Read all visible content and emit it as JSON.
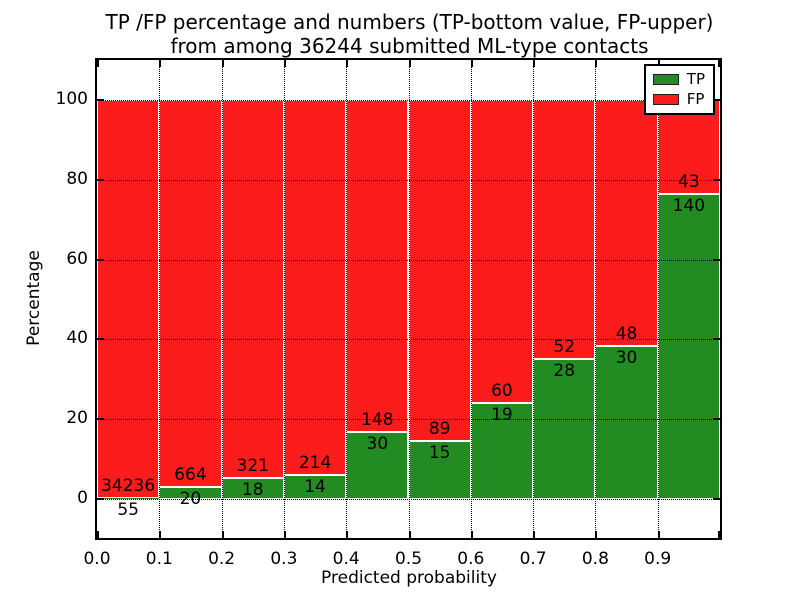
{
  "chart_data": {
    "type": "bar",
    "stacked": true,
    "title_line1": "TP /FP percentage and numbers (TP-bottom value, FP-upper)",
    "title_line2": "from among 36244 submitted ML-type contacts",
    "xlabel": "Predicted probability",
    "ylabel": "Percentage",
    "xlim": [
      0.0,
      1.0
    ],
    "ylim": [
      -10,
      110
    ],
    "grid": "dotted",
    "legend_position": "upper-right",
    "bin_width": 0.1,
    "total_contacts": 36244,
    "xticks": [
      "0.0",
      "0.1",
      "0.2",
      "0.3",
      "0.4",
      "0.5",
      "0.6",
      "0.7",
      "0.8",
      "0.9"
    ],
    "yticks": [
      0,
      20,
      40,
      60,
      80,
      100
    ],
    "categories": [
      "0.0-0.1",
      "0.1-0.2",
      "0.2-0.3",
      "0.3-0.4",
      "0.4-0.5",
      "0.5-0.6",
      "0.6-0.7",
      "0.7-0.8",
      "0.8-0.9",
      "0.9-1.0"
    ],
    "series": [
      {
        "name": "TP",
        "color": "#228b22",
        "counts": [
          55,
          20,
          18,
          14,
          30,
          15,
          19,
          28,
          30,
          140
        ]
      },
      {
        "name": "FP",
        "color": "#fc1c1c",
        "counts": [
          34236,
          664,
          321,
          214,
          148,
          89,
          60,
          52,
          48,
          43
        ]
      }
    ],
    "tp_percent": [
      0.16,
      2.92,
      5.31,
      6.14,
      16.85,
      14.42,
      24.05,
      35.0,
      38.46,
      76.5
    ]
  }
}
